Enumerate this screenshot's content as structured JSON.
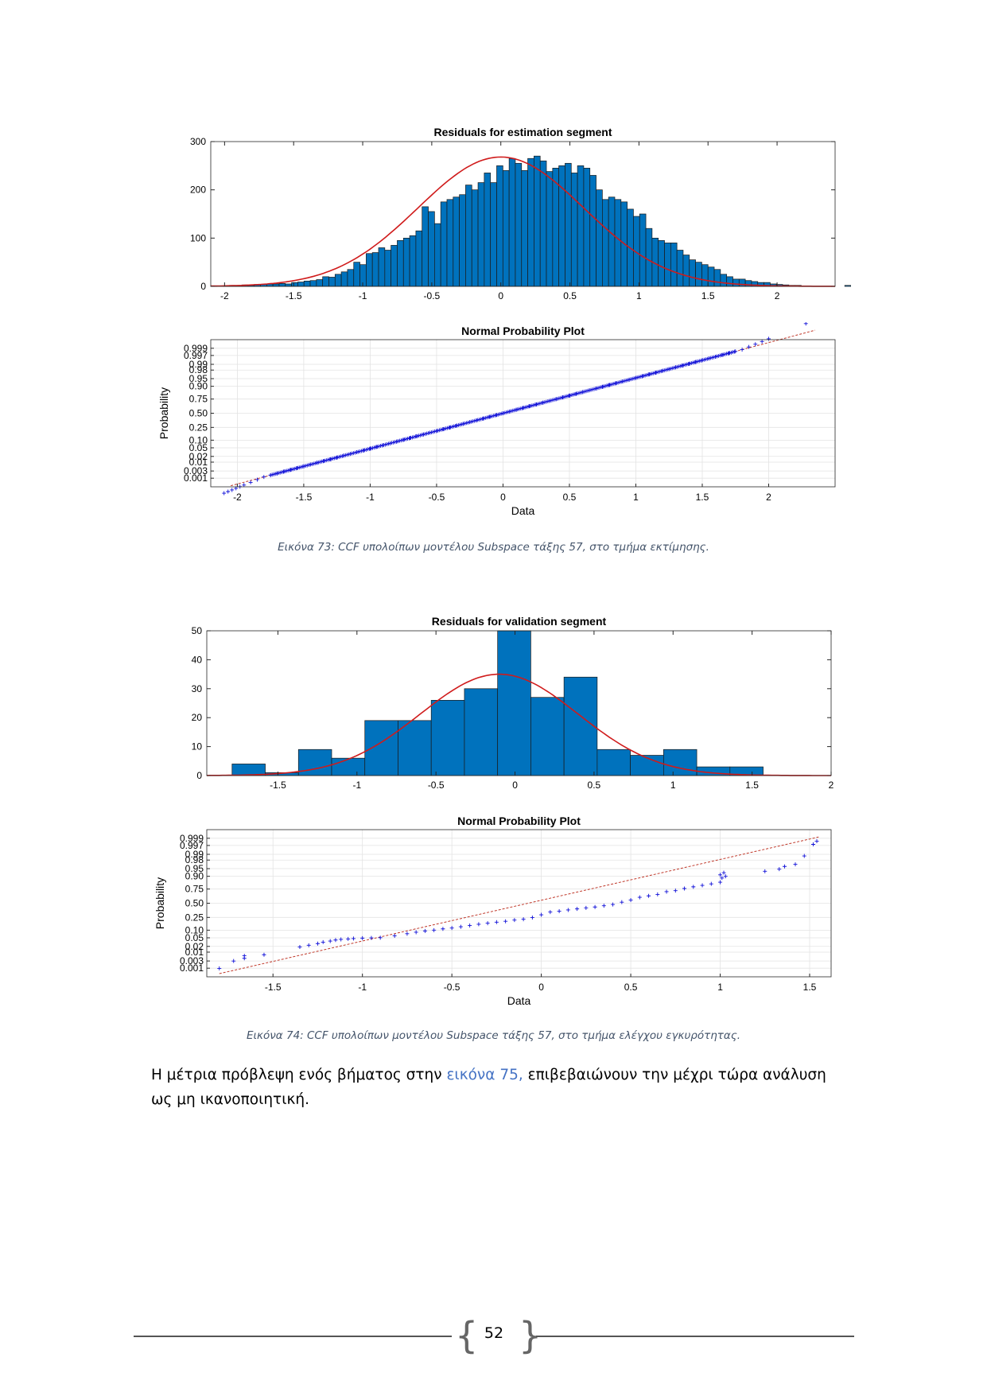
{
  "chart_data": [
    {
      "type": "bar",
      "subtype": "histogram",
      "title": "Residuals for estimation segment",
      "xlim": [
        -2.1,
        2.42
      ],
      "ylim": [
        0,
        300
      ],
      "xticks": [
        -2,
        -1.5,
        -1,
        -0.5,
        0,
        0.5,
        1,
        1.5,
        2
      ],
      "xtick_labels": [
        "-2",
        "-1.5",
        "-1",
        "-0.5",
        "0",
        "0.5",
        "1",
        "1.5",
        "2"
      ],
      "yticks": [
        0,
        100,
        200,
        300
      ],
      "ytick_labels": [
        "0",
        "100",
        "200",
        "300"
      ],
      "bin_start": -2.1,
      "bin_width": 0.045,
      "counts": [
        1,
        0,
        1,
        2,
        1,
        3,
        2,
        4,
        4,
        5,
        5,
        6,
        5,
        8,
        9,
        11,
        12,
        14,
        20,
        19,
        25,
        30,
        35,
        50,
        45,
        68,
        70,
        80,
        75,
        85,
        95,
        100,
        105,
        115,
        165,
        155,
        130,
        175,
        180,
        185,
        190,
        210,
        200,
        215,
        235,
        215,
        250,
        240,
        265,
        255,
        240,
        265,
        270,
        260,
        238,
        245,
        250,
        255,
        235,
        250,
        245,
        230,
        200,
        180,
        185,
        180,
        175,
        160,
        145,
        150,
        120,
        100,
        95,
        90,
        90,
        75,
        65,
        55,
        50,
        45,
        40,
        35,
        25,
        20,
        15,
        15,
        12,
        10,
        8,
        8,
        5,
        4,
        3,
        2,
        2,
        0,
        0,
        0,
        0,
        0,
        0,
        0,
        2,
        1
      ],
      "fit_curve": {
        "type": "normal",
        "mean": 0.0,
        "std": 0.6,
        "peak": 268
      },
      "bar_color": "#0072bd",
      "fit_color": "#d01b1b"
    },
    {
      "type": "scatter",
      "subtype": "normal-probability",
      "title": "Normal Probability Plot",
      "xlabel": "Data",
      "ylabel": "Probability",
      "xlim": [
        -2.2,
        2.5
      ],
      "xticks": [
        -2,
        -1.5,
        -1,
        -0.5,
        0,
        0.5,
        1,
        1.5,
        2
      ],
      "xtick_labels": [
        "-2",
        "-1.5",
        "-1",
        "-0.5",
        "0",
        "0.5",
        "1",
        "1.5",
        "2"
      ],
      "ytick_probs": [
        0.001,
        0.003,
        0.01,
        0.02,
        0.05,
        0.1,
        0.25,
        0.5,
        0.75,
        0.9,
        0.95,
        0.98,
        0.99,
        0.997,
        0.999
      ],
      "ytick_labels": [
        "0.001",
        "0.003",
        "0.01",
        "0.02",
        "0.05",
        "0.10",
        "0.25",
        "0.50",
        "0.75",
        "0.90",
        "0.95",
        "0.98",
        "0.99",
        "0.997",
        "0.999"
      ],
      "reference_line": {
        "x": [
          -2.05,
          2.35
        ],
        "z": [
          -3.45,
          3.95
        ]
      },
      "points_x": [
        -2.1,
        -2.07,
        -2.04,
        -2.01,
        -1.98,
        -1.95,
        -1.9,
        -1.85,
        -1.8,
        -1.75,
        -1.7,
        -1.65,
        -1.6,
        -1.55,
        -1.5,
        -1.45,
        -1.4,
        -1.35,
        -1.3,
        -1.25,
        -1.2,
        -1.15,
        -1.1,
        -1.05,
        -1.0,
        -0.95,
        -0.9,
        -0.85,
        -0.8,
        -0.75,
        -0.7,
        -0.65,
        -0.6,
        -0.55,
        -0.5,
        -0.45,
        -0.4,
        -0.35,
        -0.3,
        -0.25,
        -0.2,
        -0.15,
        -0.1,
        -0.05,
        0.0,
        0.05,
        0.1,
        0.15,
        0.2,
        0.25,
        0.3,
        0.35,
        0.4,
        0.45,
        0.5,
        0.55,
        0.6,
        0.65,
        0.7,
        0.75,
        0.8,
        0.85,
        0.9,
        0.95,
        1.0,
        1.05,
        1.1,
        1.15,
        1.2,
        1.25,
        1.3,
        1.35,
        1.4,
        1.45,
        1.5,
        1.55,
        1.6,
        1.65,
        1.7,
        1.75,
        1.8,
        1.85,
        1.9,
        1.95,
        2.0,
        2.28,
        2.37
      ],
      "point_color": "#1010d8",
      "line_color": "#c0392b"
    },
    {
      "type": "bar",
      "subtype": "histogram",
      "title": "Residuals for validation segment",
      "xlim": [
        -1.95,
        2.0
      ],
      "ylim": [
        0,
        50
      ],
      "xticks": [
        -1.5,
        -1,
        -0.5,
        0,
        0.5,
        1,
        1.5,
        2
      ],
      "xtick_labels": [
        "-1.5",
        "-1",
        "-0.5",
        "0",
        "0.5",
        "1",
        "1.5",
        "2"
      ],
      "yticks": [
        0,
        10,
        20,
        30,
        40,
        50
      ],
      "ytick_labels": [
        "0",
        "10",
        "20",
        "30",
        "40",
        "50"
      ],
      "bin_start": -1.79,
      "bin_width": 0.21,
      "counts": [
        4,
        1,
        9,
        6,
        19,
        19,
        26,
        30,
        50,
        27,
        34,
        9,
        7,
        9,
        3,
        3
      ],
      "fit_curve": {
        "type": "normal",
        "mean": -0.1,
        "std": 0.5,
        "peak": 35
      },
      "bar_color": "#0072bd",
      "fit_color": "#d01b1b"
    },
    {
      "type": "scatter",
      "subtype": "normal-probability",
      "title": "Normal Probability Plot",
      "xlabel": "Data",
      "ylabel": "Probability",
      "xlim": [
        -1.87,
        1.62
      ],
      "xticks": [
        -1.5,
        -1,
        -0.5,
        0,
        0.5,
        1,
        1.5
      ],
      "xtick_labels": [
        "-1.5",
        "-1",
        "-0.5",
        "0",
        "0.5",
        "1",
        "1.5"
      ],
      "ytick_probs": [
        0.001,
        0.003,
        0.01,
        0.02,
        0.05,
        0.1,
        0.25,
        0.5,
        0.75,
        0.9,
        0.95,
        0.98,
        0.99,
        0.997,
        0.999
      ],
      "ytick_labels": [
        "0.001",
        "0.003",
        "0.01",
        "0.02",
        "0.05",
        "0.10",
        "0.25",
        "0.50",
        "0.75",
        "0.90",
        "0.95",
        "0.98",
        "0.99",
        "0.997",
        "0.999"
      ],
      "reference_line": {
        "x": [
          -1.8,
          1.55
        ],
        "z": [
          -3.35,
          3.15
        ]
      },
      "points": [
        [
          -1.8,
          -3.1
        ],
        [
          -1.72,
          -2.75
        ],
        [
          -1.66,
          -2.62
        ],
        [
          -1.66,
          -2.5
        ],
        [
          -1.55,
          -2.45
        ],
        [
          -1.35,
          -2.08
        ],
        [
          -1.3,
          -2.0
        ],
        [
          -1.25,
          -1.92
        ],
        [
          -1.22,
          -1.85
        ],
        [
          -1.18,
          -1.8
        ],
        [
          -1.15,
          -1.75
        ],
        [
          -1.12,
          -1.72
        ],
        [
          -1.08,
          -1.7
        ],
        [
          -1.05,
          -1.68
        ],
        [
          -1.0,
          -1.66
        ],
        [
          -0.95,
          -1.65
        ],
        [
          -0.9,
          -1.64
        ],
        [
          -0.82,
          -1.55
        ],
        [
          -0.75,
          -1.45
        ],
        [
          -0.7,
          -1.38
        ],
        [
          -0.65,
          -1.32
        ],
        [
          -0.6,
          -1.28
        ],
        [
          -0.55,
          -1.22
        ],
        [
          -0.5,
          -1.18
        ],
        [
          -0.45,
          -1.12
        ],
        [
          -0.4,
          -1.06
        ],
        [
          -0.35,
          -1.0
        ],
        [
          -0.3,
          -0.95
        ],
        [
          -0.25,
          -0.9
        ],
        [
          -0.2,
          -0.86
        ],
        [
          -0.15,
          -0.8
        ],
        [
          -0.1,
          -0.76
        ],
        [
          -0.05,
          -0.68
        ],
        [
          0.0,
          -0.55
        ],
        [
          0.05,
          -0.42
        ],
        [
          0.1,
          -0.38
        ],
        [
          0.15,
          -0.32
        ],
        [
          0.2,
          -0.27
        ],
        [
          0.25,
          -0.22
        ],
        [
          0.3,
          -0.18
        ],
        [
          0.35,
          -0.12
        ],
        [
          0.4,
          -0.06
        ],
        [
          0.45,
          0.05
        ],
        [
          0.5,
          0.15
        ],
        [
          0.55,
          0.28
        ],
        [
          0.6,
          0.35
        ],
        [
          0.65,
          0.42
        ],
        [
          0.7,
          0.55
        ],
        [
          0.75,
          0.6
        ],
        [
          0.8,
          0.7
        ],
        [
          0.85,
          0.78
        ],
        [
          0.9,
          0.85
        ],
        [
          0.95,
          0.92
        ],
        [
          1.0,
          1.0
        ],
        [
          1.01,
          1.2
        ],
        [
          1.03,
          1.28
        ],
        [
          1.02,
          1.45
        ],
        [
          1.0,
          1.35
        ],
        [
          1.25,
          1.52
        ],
        [
          1.33,
          1.62
        ],
        [
          1.36,
          1.75
        ],
        [
          1.42,
          1.85
        ],
        [
          1.47,
          2.25
        ],
        [
          1.52,
          2.8
        ],
        [
          1.54,
          2.95
        ]
      ],
      "point_color": "#1010d8",
      "line_color": "#c0392b"
    }
  ],
  "captions": {
    "fig73": "Εικόνα 73: CCF υπολοίπων μοντέλου Subspace τάξης 57, στο τμήμα εκτίμησης.",
    "fig74": "Εικόνα 74: CCF υπολοίπων μοντέλου Subspace τάξης 57, στο τμήμα ελέγχου εγκυρότητας."
  },
  "paragraph": {
    "before": "Η μέτρια πρόβλεψη ενός βήματος στην ",
    "link": "εικόνα 75,",
    "after": " επιβεβαιώνουν την μέχρι τώρα ανάλυση ως μη ικανοποιητική."
  },
  "footer": {
    "page_number": "52",
    "bracket_left": "{",
    "bracket_right": "}"
  }
}
